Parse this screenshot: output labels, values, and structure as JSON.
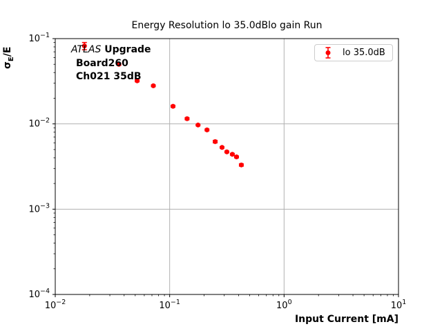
{
  "colors": {
    "marker": "#ff0000",
    "grid": "#b0b0b0",
    "spine": "#000000",
    "legend_border": "#cccccc",
    "background": "#ffffff"
  },
  "chart_data": {
    "type": "scatter",
    "title": "Energy Resolution lo 35.0dBlo gain Run",
    "xlabel": "Input Current [mA]",
    "ylabel": "σ_E/E",
    "ylabel_parts": {
      "sigma": "σ",
      "sub": "E",
      "rest": "/E"
    },
    "x_scale": "log",
    "y_scale": "log",
    "xlim": [
      0.01,
      10
    ],
    "ylim": [
      0.0001,
      0.1
    ],
    "grid": true,
    "legend": {
      "label": "lo 35.0dB",
      "position": "upper right"
    },
    "annotations": {
      "line1_italic": "ATLAS",
      "line1_bold": " Upgrade",
      "line2": "Board260",
      "line3": "Ch021 35dB"
    },
    "series": [
      {
        "name": "lo 35.0dB",
        "color": "#ff0000",
        "marker": "circle",
        "errorbars": true,
        "x": [
          0.018,
          0.036,
          0.052,
          0.072,
          0.107,
          0.142,
          0.177,
          0.212,
          0.25,
          0.287,
          0.316,
          0.353,
          0.384,
          0.423
        ],
        "y": [
          0.082,
          0.05,
          0.032,
          0.028,
          0.0161,
          0.0115,
          0.0097,
          0.0085,
          0.0062,
          0.0053,
          0.0047,
          0.0044,
          0.0041,
          0.0033
        ],
        "yerr": [
          0.008,
          0.0012,
          0.0008,
          0.0006,
          0.0004,
          0.0003,
          0.0002,
          0.0002,
          0.0002,
          0.0001,
          0.0001,
          0.0001,
          0.0001,
          0.0001
        ]
      }
    ]
  }
}
